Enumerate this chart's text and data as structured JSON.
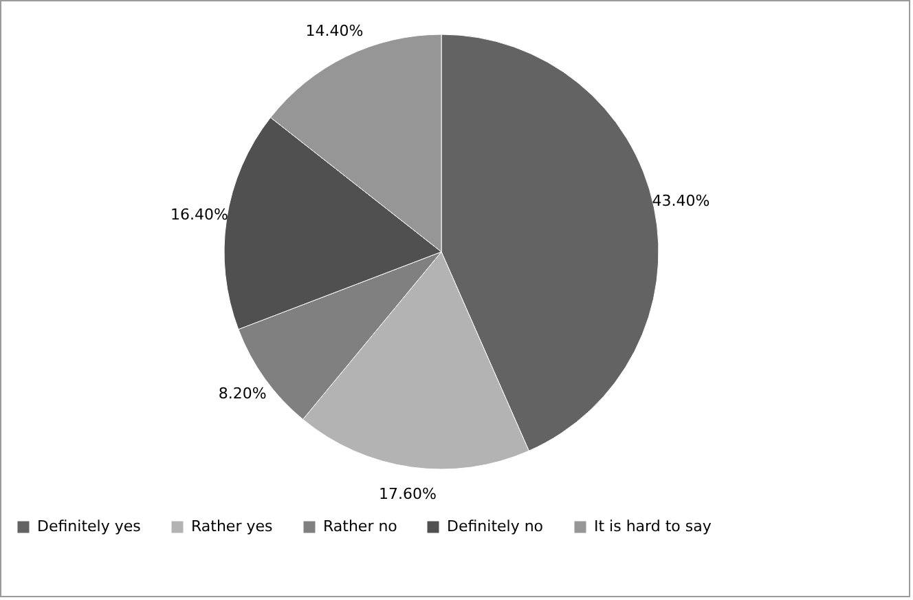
{
  "chart_data": {
    "type": "pie",
    "categories": [
      "Definitely yes",
      "Rather yes",
      "Rather no",
      "Definitely no",
      "It is hard to say"
    ],
    "values": [
      43.4,
      17.6,
      8.2,
      16.4,
      14.4
    ],
    "colors": [
      "#636363",
      "#b3b3b3",
      "#808080",
      "#505050",
      "#969696"
    ],
    "value_labels": [
      "43.40%",
      "17.60%",
      "8.20%",
      "16.40%",
      "14.40%"
    ],
    "legend": "bottom"
  }
}
